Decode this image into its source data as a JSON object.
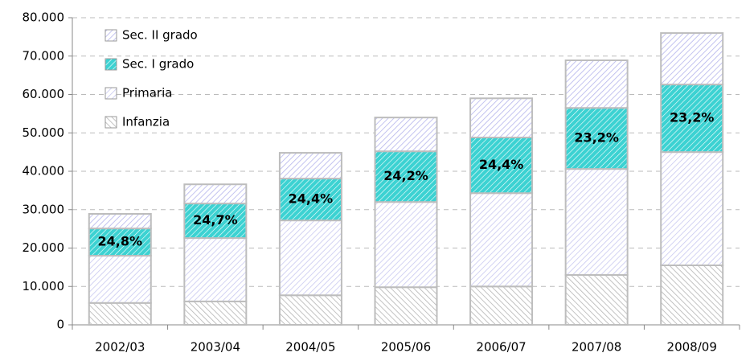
{
  "chart_data": {
    "type": "stacked_bar",
    "categories": [
      "2002/03",
      "2003/04",
      "2004/05",
      "2005/06",
      "2006/07",
      "2007/08",
      "2008/09"
    ],
    "series": [
      {
        "name": "Infanzia",
        "color": "#b4b4b4",
        "values": [
          5700,
          6100,
          7700,
          9800,
          10000,
          13000,
          15500
        ]
      },
      {
        "name": "Primaria",
        "color": "#c8c8f0",
        "values": [
          12300,
          16500,
          19500,
          22200,
          24300,
          27600,
          29500
        ]
      },
      {
        "name": "Sec. I grado",
        "color": "#3cd2d2",
        "values": [
          7100,
          9000,
          10900,
          13200,
          14500,
          15900,
          17600
        ],
        "percent_labels": [
          "24,8%",
          "24,7%",
          "24,4%",
          "24,2%",
          "24,4%",
          "23,2%",
          "23,2%"
        ]
      },
      {
        "name": "Sec. II grado",
        "color": "#b4b4ec",
        "values": [
          3800,
          5000,
          6700,
          8800,
          10200,
          12400,
          13400
        ]
      }
    ],
    "ylim": [
      0,
      80000
    ],
    "yticks": [
      0,
      {
        "value": 10000,
        "label": "10.000"
      },
      {
        "value": 20000,
        "label": "20.000"
      },
      {
        "value": 30000,
        "label": "30.000"
      },
      {
        "value": 40000,
        "label": "40.000"
      },
      {
        "value": 50000,
        "label": "50.000"
      },
      {
        "value": 60000,
        "label": "60.000"
      },
      {
        "value": 70000,
        "label": "70.000"
      },
      {
        "value": 80000,
        "label": "80.000"
      }
    ],
    "grid": true
  }
}
